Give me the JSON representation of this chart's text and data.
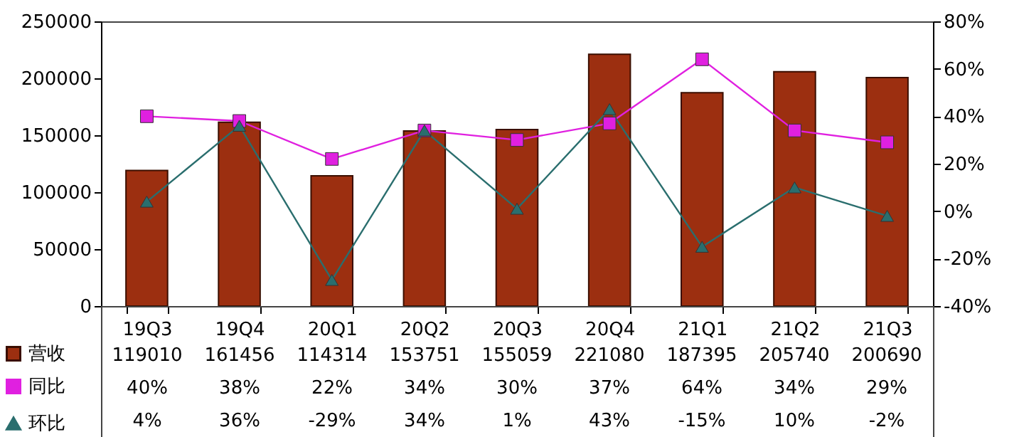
{
  "chart_data": {
    "type": "bar",
    "categories": [
      "19Q3",
      "19Q4",
      "20Q1",
      "20Q2",
      "20Q3",
      "20Q4",
      "21Q1",
      "21Q2",
      "21Q3"
    ],
    "series": [
      {
        "name": "营收",
        "color": "#9c2f10",
        "values": [
          119010,
          161456,
          114314,
          153751,
          155059,
          221080,
          187395,
          205740,
          200690
        ],
        "value_labels": [
          "119010",
          "161456",
          "114314",
          "153751",
          "155059",
          "221080",
          "187395",
          "205740",
          "200690"
        ]
      },
      {
        "name": "同比",
        "type": "line",
        "axis": "y2",
        "marker": "square",
        "color": "#e020e0",
        "values": [
          40,
          38,
          22,
          34,
          30,
          37,
          64,
          34,
          29
        ],
        "value_labels": [
          "40%",
          "38%",
          "22%",
          "34%",
          "30%",
          "37%",
          "64%",
          "34%",
          "29%"
        ]
      },
      {
        "name": "环比",
        "type": "line",
        "axis": "y2",
        "marker": "triangle",
        "color": "#2a6e6e",
        "values": [
          4,
          36,
          -29,
          34,
          1,
          43,
          -15,
          10,
          -2
        ],
        "value_labels": [
          "4%",
          "36%",
          "-29%",
          "34%",
          "1%",
          "43%",
          "-15%",
          "10%",
          "-2%"
        ]
      }
    ],
    "ylim": [
      0,
      250000
    ],
    "yticks": [
      0,
      50000,
      100000,
      150000,
      200000,
      250000
    ],
    "y2lim": [
      -40,
      80
    ],
    "y2ticks": [
      {
        "value": -40,
        "label": "-40%"
      },
      {
        "value": -20,
        "label": "-20%"
      },
      {
        "value": 0,
        "label": "0%"
      },
      {
        "value": 20,
        "label": "20%"
      },
      {
        "value": 40,
        "label": "40%"
      },
      {
        "value": 60,
        "label": "60%"
      },
      {
        "value": 80,
        "label": "80%"
      }
    ],
    "legend": "bottom left",
    "grid": false
  }
}
